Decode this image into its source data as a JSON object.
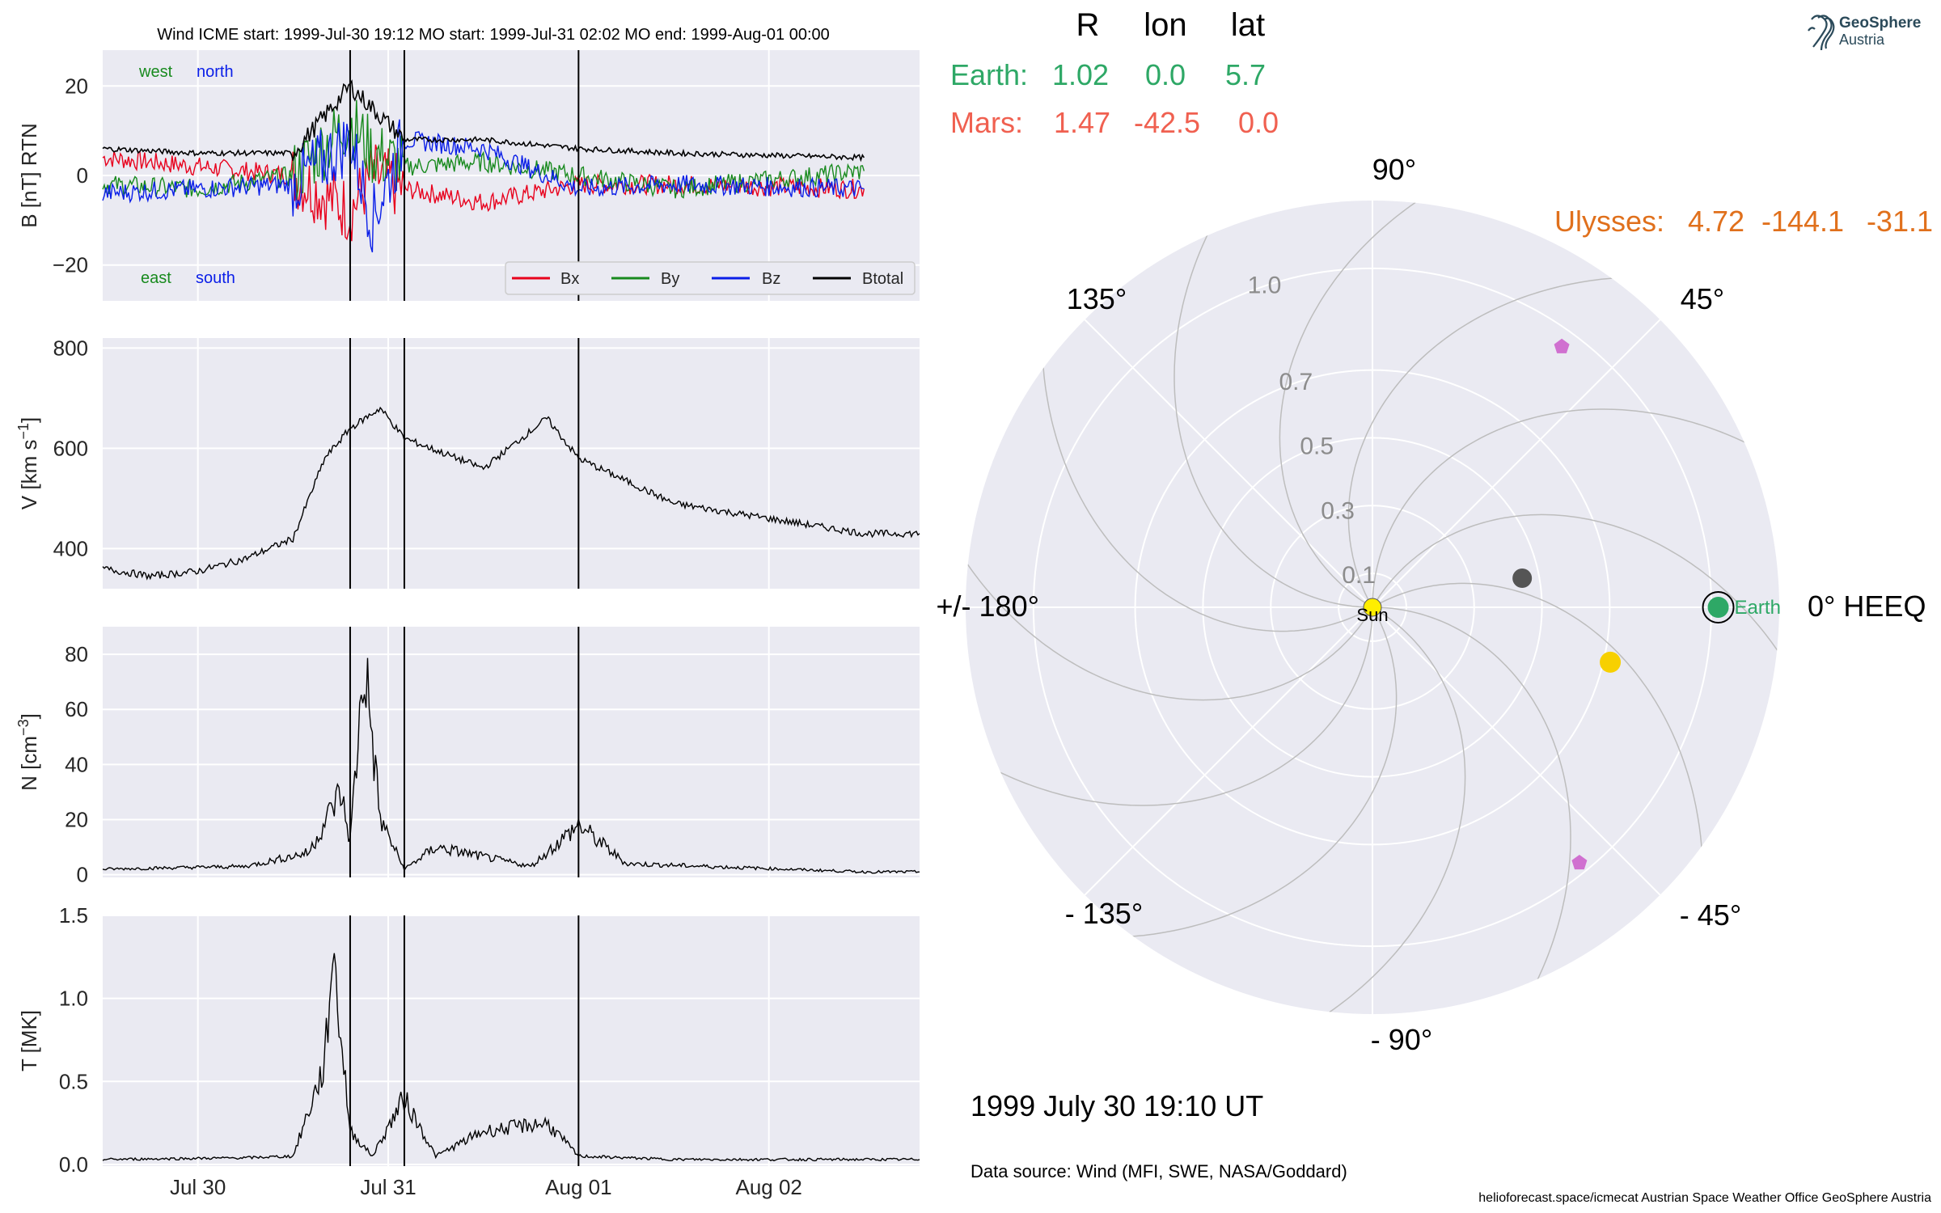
{
  "header": {
    "title": "Wind    ICME start: 1999-Jul-30 19:12   MO start: 1999-Jul-31 02:02   MO end: 1999-Aug-01 00:00"
  },
  "logo": {
    "line1": "GeoSphere",
    "line2": "Austria"
  },
  "colors": {
    "bx": "#e8001c",
    "by": "#188a1e",
    "bz": "#0a1ee8",
    "btotal": "#000000",
    "earth": "#2ea866",
    "mars": "#f06050",
    "ulysses": "#e0701c",
    "sun": "#ffee00",
    "yellow_obj": "#f7d000",
    "grey_obj": "#555555",
    "pink_obj": "#d070d0"
  },
  "positions_table": {
    "headers": [
      "R",
      "lon",
      "lat"
    ],
    "rows": [
      {
        "name": "Earth:",
        "r": "1.02",
        "lon": "0.0",
        "lat": "5.7"
      },
      {
        "name": "Mars:",
        "r": "1.47",
        "lon": "-42.5",
        "lat": "0.0"
      }
    ],
    "ulysses": {
      "name": "Ulysses:",
      "r": "4.72",
      "lon": "-144.1",
      "lat": "-31.1"
    }
  },
  "polar": {
    "angle_labels": [
      "90°",
      "45°",
      "0° HEEQ",
      "- 45°",
      "- 90°",
      "- 135°",
      "+/- 180°",
      "135°"
    ],
    "radial_labels": [
      "0.1",
      "0.3",
      "0.5",
      "0.7",
      "1.0"
    ],
    "sun_label": "Sun",
    "earth_label": "Earth"
  },
  "timestamp": "1999 July 30  19:10 UT",
  "data_source": "Data source: Wind (MFI, SWE, NASA/Goddard)",
  "footer": "helioforecast.space/icmecat   Austrian Space Weather Office   GeoSphere Austria",
  "chart_data": [
    {
      "type": "line",
      "ylabel": "B [nT] RTN",
      "ylim": [
        -28,
        28
      ],
      "yticks": [
        "20",
        "0",
        "−20"
      ],
      "annotations": {
        "top_left": [
          "west",
          "north"
        ],
        "bottom_left": [
          "east",
          "south"
        ]
      },
      "legend": [
        "Bx",
        "By",
        "Bz",
        "Btotal"
      ],
      "legend_placement": "lower-right",
      "x": [
        "1999-07-29 12:00",
        "1999-07-30 00:00",
        "1999-07-30 12:00",
        "1999-07-30 19:12",
        "1999-07-30 22:00",
        "1999-07-31 02:02",
        "1999-07-31 12:00",
        "1999-08-01 00:00",
        "1999-08-01 12:00",
        "1999-08-02 12:00"
      ],
      "series": [
        {
          "name": "Bx",
          "values": [
            4,
            2,
            0,
            -8,
            0,
            -3,
            -6,
            -2,
            -2,
            -3
          ]
        },
        {
          "name": "By",
          "values": [
            -2,
            -3,
            0,
            12,
            5,
            2,
            3,
            0,
            -3,
            1
          ]
        },
        {
          "name": "Bz",
          "values": [
            -4,
            -3,
            -2,
            8,
            -10,
            8,
            6,
            -3,
            -2,
            -3
          ]
        },
        {
          "name": "Btotal",
          "values": [
            6,
            5,
            5,
            20,
            15,
            8,
            8,
            6,
            5,
            4
          ]
        }
      ],
      "vlines": [
        "1999-07-30 19:12",
        "1999-07-31 02:02",
        "1999-08-01 00:00"
      ]
    },
    {
      "type": "line",
      "ylabel": "V [km s",
      "ylabel_sup": "−1",
      "ylabel_end": "]",
      "ylim": [
        320,
        820
      ],
      "yticks": [
        "800",
        "600",
        "400"
      ],
      "x": [
        "1999-07-29 12:00",
        "1999-07-29 18:00",
        "1999-07-30 00:00",
        "1999-07-30 06:00",
        "1999-07-30 12:00",
        "1999-07-30 16:00",
        "1999-07-30 19:12",
        "1999-07-30 23:00",
        "1999-07-31 02:02",
        "1999-07-31 12:00",
        "1999-07-31 20:00",
        "1999-08-01 00:00",
        "1999-08-01 12:00",
        "1999-08-02 00:00",
        "1999-08-02 12:00",
        "1999-08-02 19:00"
      ],
      "series": [
        {
          "name": "V",
          "values": [
            360,
            345,
            355,
            380,
            420,
            580,
            640,
            680,
            620,
            560,
            660,
            580,
            490,
            460,
            430,
            430
          ]
        }
      ],
      "vlines": [
        "1999-07-30 19:12",
        "1999-07-31 02:02",
        "1999-08-01 00:00"
      ]
    },
    {
      "type": "line",
      "ylabel": "N [cm",
      "ylabel_sup": "−3",
      "ylabel_end": "]",
      "ylim": [
        -1,
        90
      ],
      "yticks": [
        "80",
        "60",
        "40",
        "20",
        "0"
      ],
      "x": [
        "1999-07-29 12:00",
        "1999-07-30 06:00",
        "1999-07-30 14:00",
        "1999-07-30 18:00",
        "1999-07-30 19:12",
        "1999-07-30 21:00",
        "1999-07-30 23:00",
        "1999-07-31 02:02",
        "1999-07-31 06:00",
        "1999-07-31 18:00",
        "1999-08-01 00:00",
        "1999-08-01 06:00",
        "1999-08-02 12:00",
        "1999-08-02 19:00"
      ],
      "series": [
        {
          "name": "N",
          "values": [
            2,
            3,
            8,
            30,
            12,
            78,
            20,
            2,
            10,
            3,
            18,
            4,
            1,
            1
          ]
        }
      ],
      "vlines": [
        "1999-07-30 19:12",
        "1999-07-31 02:02",
        "1999-08-01 00:00"
      ]
    },
    {
      "type": "line",
      "ylabel": "T [MK]",
      "ylim": [
        -0.01,
        1.5
      ],
      "yticks": [
        "1.5",
        "1.0",
        "0.5",
        "0.0"
      ],
      "xticks": [
        "Jul 30",
        "Jul 31",
        "Aug 01",
        "Aug 02"
      ],
      "x": [
        "1999-07-29 12:00",
        "1999-07-30 06:00",
        "1999-07-30 12:00",
        "1999-07-30 16:00",
        "1999-07-30 17:00",
        "1999-07-30 19:12",
        "1999-07-30 22:00",
        "1999-07-31 02:00",
        "1999-07-31 06:00",
        "1999-07-31 12:00",
        "1999-07-31 20:00",
        "1999-08-01 00:00",
        "1999-08-01 12:00",
        "1999-08-02 19:00"
      ],
      "series": [
        {
          "name": "T",
          "values": [
            0.03,
            0.04,
            0.05,
            0.6,
            1.3,
            0.2,
            0.05,
            0.4,
            0.05,
            0.2,
            0.25,
            0.05,
            0.03,
            0.03
          ]
        }
      ],
      "vlines": [
        "1999-07-30 19:12",
        "1999-07-31 02:02",
        "1999-08-01 00:00"
      ]
    },
    {
      "type": "scatter",
      "projection": "polar",
      "radial_ticks": [
        0.1,
        0.3,
        0.5,
        0.7,
        1.0
      ],
      "points": [
        {
          "label": "Sun",
          "r": 0,
          "lon": 0
        },
        {
          "label": "Earth",
          "r": 1.02,
          "lon": 0.0
        },
        {
          "label": "",
          "r": 0.45,
          "lon": 11
        },
        {
          "label": "",
          "r": 0.72,
          "lon": -13
        },
        {
          "label": "",
          "r": 0.95,
          "lon": 54
        },
        {
          "label": "",
          "r": 0.97,
          "lon": -51
        }
      ]
    }
  ]
}
